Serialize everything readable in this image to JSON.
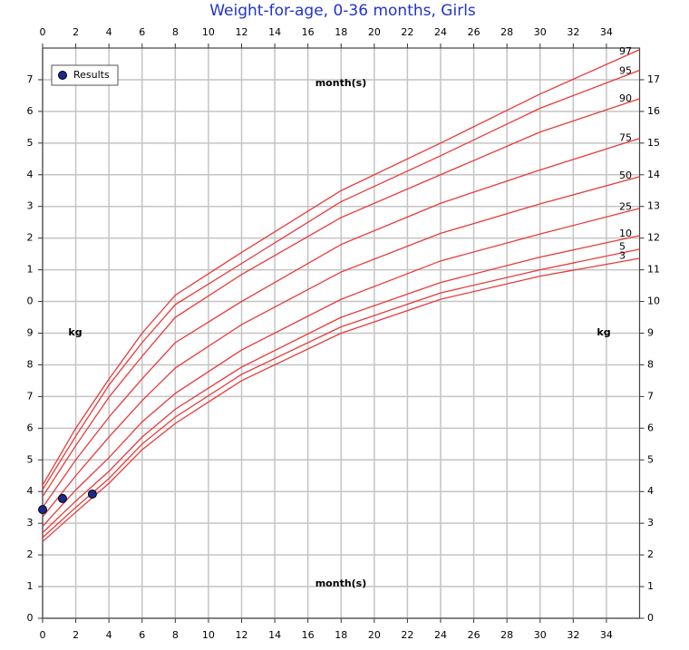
{
  "chart_data": {
    "type": "line",
    "title": "Weight-for-age, 0-36 months, Girls",
    "xlabel": "month(s)",
    "ylabel": "kg",
    "xlim": [
      0,
      36
    ],
    "ylim": [
      0,
      18
    ],
    "y2lim": [
      0,
      18
    ],
    "xticks": [
      0,
      2,
      4,
      6,
      8,
      10,
      12,
      14,
      16,
      18,
      20,
      22,
      24,
      26,
      28,
      30,
      32,
      34
    ],
    "yticks": [
      0,
      1,
      2,
      3,
      4,
      5,
      6,
      7,
      8,
      9,
      {
        "value": 10,
        "label": "0"
      },
      {
        "value": 11,
        "label": "1"
      },
      {
        "value": 12,
        "label": "2"
      },
      {
        "value": 13,
        "label": "3"
      },
      {
        "value": 14,
        "label": "4"
      },
      {
        "value": 15,
        "label": "5"
      },
      {
        "value": 16,
        "label": "6"
      },
      {
        "value": 17,
        "label": "7"
      }
    ],
    "y2ticks": [
      0,
      1,
      2,
      3,
      4,
      5,
      6,
      7,
      8,
      9,
      10,
      11,
      12,
      13,
      14,
      15,
      16,
      17
    ],
    "grid": true,
    "legend": "upper left",
    "series": [
      {
        "name": "97",
        "type": "line",
        "color": "#e83a3a",
        "x": [
          0,
          2,
          4,
          6,
          8,
          12,
          18,
          24,
          30,
          36
        ],
        "values": [
          4.2,
          6.0,
          7.55,
          9.0,
          10.2,
          11.55,
          13.5,
          15.0,
          16.55,
          17.95
        ]
      },
      {
        "name": "95",
        "type": "line",
        "color": "#e83a3a",
        "x": [
          0,
          2,
          4,
          6,
          8,
          12,
          18,
          24,
          30,
          36
        ],
        "values": [
          4.06,
          5.75,
          7.36,
          8.7,
          9.9,
          11.2,
          13.15,
          14.6,
          16.1,
          17.3
        ]
      },
      {
        "name": "90",
        "type": "line",
        "color": "#e83a3a",
        "x": [
          0,
          2,
          4,
          6,
          8,
          12,
          18,
          24,
          30,
          36
        ],
        "values": [
          3.84,
          5.45,
          6.98,
          8.27,
          9.5,
          10.85,
          12.65,
          14.0,
          15.35,
          16.4
        ]
      },
      {
        "name": "75",
        "type": "line",
        "color": "#e83a3a",
        "x": [
          0,
          2,
          4,
          6,
          8,
          12,
          18,
          24,
          30,
          36
        ],
        "values": [
          3.5,
          5.0,
          6.35,
          7.56,
          8.7,
          10.0,
          11.8,
          13.1,
          14.15,
          15.15
        ]
      },
      {
        "name": "50",
        "type": "line",
        "color": "#e83a3a",
        "x": [
          0,
          2,
          4,
          6,
          8,
          12,
          18,
          24,
          30,
          36
        ],
        "values": [
          3.2,
          4.5,
          5.72,
          6.87,
          7.9,
          9.27,
          10.93,
          12.15,
          13.08,
          13.94
        ]
      },
      {
        "name": "25",
        "type": "line",
        "color": "#e83a3a",
        "x": [
          0,
          2,
          4,
          6,
          8,
          12,
          18,
          24,
          30,
          36
        ],
        "values": [
          2.9,
          4.05,
          5.07,
          6.2,
          7.1,
          8.47,
          10.07,
          11.28,
          12.13,
          12.94
        ]
      },
      {
        "name": "10",
        "type": "line",
        "color": "#e83a3a",
        "x": [
          0,
          2,
          4,
          6,
          8,
          12,
          18,
          24,
          30,
          36
        ],
        "values": [
          2.7,
          3.7,
          4.64,
          5.72,
          6.6,
          7.93,
          9.5,
          10.6,
          11.4,
          12.08
        ]
      },
      {
        "name": "5",
        "type": "line",
        "color": "#e83a3a",
        "x": [
          0,
          2,
          4,
          6,
          8,
          12,
          18,
          24,
          30,
          36
        ],
        "values": [
          2.55,
          3.5,
          4.41,
          5.5,
          6.35,
          7.7,
          9.2,
          10.27,
          11.0,
          11.65
        ]
      },
      {
        "name": "3",
        "type": "line",
        "color": "#e83a3a",
        "x": [
          0,
          2,
          4,
          6,
          8,
          12,
          18,
          24,
          30,
          36
        ],
        "values": [
          2.42,
          3.35,
          4.26,
          5.32,
          6.15,
          7.5,
          9.0,
          10.07,
          10.8,
          11.36
        ]
      },
      {
        "name": "Results",
        "type": "scatter",
        "color": "#1a2a8c",
        "x": [
          0,
          1.2,
          3.0
        ],
        "values": [
          3.43,
          3.78,
          3.92
        ]
      }
    ]
  }
}
